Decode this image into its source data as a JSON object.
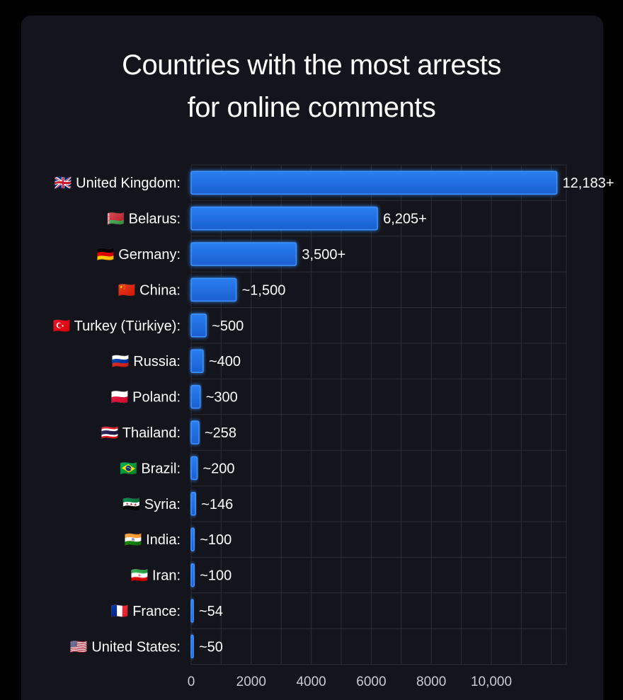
{
  "chart_data": {
    "type": "bar",
    "orientation": "horizontal",
    "title_lines": [
      "Countries with the most arrests",
      "for online comments"
    ],
    "categories": [
      "United Kingdom:",
      "Belarus:",
      "Germany:",
      "China:",
      "Turkey (Türkiye):",
      "Russia:",
      "Poland:",
      "Thailand:",
      "Brazil:",
      "Syria:",
      "India:",
      "Iran:",
      "France:",
      "United States:"
    ],
    "flags": [
      "🇬🇧",
      "🇧🇾",
      "🇩🇪",
      "🇨🇳",
      "🇹🇷",
      "🇷🇺",
      "🇵🇱",
      "🇹🇭",
      "🇧🇷",
      "🇸🇾",
      "🇮🇳",
      "🇮🇷",
      "🇫🇷",
      "🇺🇸"
    ],
    "values": [
      12183,
      6205,
      3500,
      1500,
      500,
      400,
      300,
      258,
      200,
      146,
      100,
      100,
      54,
      50
    ],
    "value_labels": [
      "12,183+",
      "6,205+",
      "3,500+",
      "~1,500",
      "~500",
      "~400",
      "~300",
      "~258",
      "~200",
      "~146",
      "~100",
      "~100",
      "~54",
      "~50"
    ],
    "xticks": [
      0,
      2000,
      4000,
      6000,
      8000,
      10000
    ],
    "xtick_labels": [
      "0",
      "2000",
      "4000",
      "6000",
      "8000",
      "10,000"
    ],
    "xlim": [
      0,
      12500
    ],
    "grid": true,
    "bar_color": "#1f6fe0",
    "glow_color": "#3d93ff"
  }
}
